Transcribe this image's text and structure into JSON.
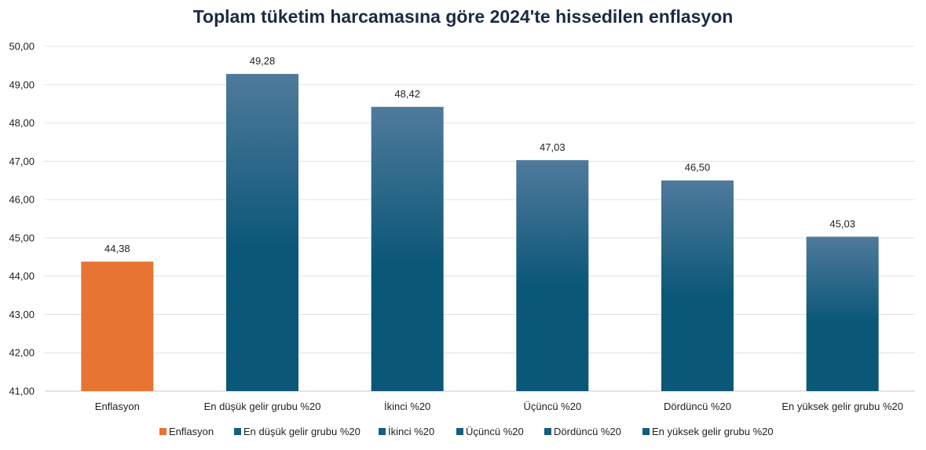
{
  "chart_data": {
    "type": "bar",
    "title": "Toplam tüketim harcamasına göre 2024'te hissedilen enflasyon",
    "categories": [
      "Enflasyon",
      "En düşük gelir grubu %20",
      "İkinci %20",
      "Üçüncü %20",
      "Dördüncü %20",
      "En yüksek gelir grubu %20"
    ],
    "values": [
      44.38,
      49.28,
      48.42,
      47.03,
      46.5,
      45.03
    ],
    "data_labels": [
      "44,38",
      "49,28",
      "48,42",
      "47,03",
      "46,50",
      "45,03"
    ],
    "ylim": [
      41,
      50
    ],
    "yticks": [
      "41,00",
      "42,00",
      "43,00",
      "44,00",
      "45,00",
      "46,00",
      "47,00",
      "48,00",
      "49,00",
      "50,00"
    ],
    "grid": true,
    "legend_position": "bottom",
    "legend": [
      "Enflasyon",
      "En düşük gelir grubu %20",
      "İkinci %20",
      "Üçüncü %20",
      "Dördüncü %20",
      "En yüksek gelir grubu %20"
    ],
    "colors": {
      "highlight": "#e87433",
      "bar_top": "#4f7a9c",
      "bar_bottom": "#0b5778",
      "legend_highlight": "#e87433",
      "legend_other": "#12607f"
    }
  }
}
